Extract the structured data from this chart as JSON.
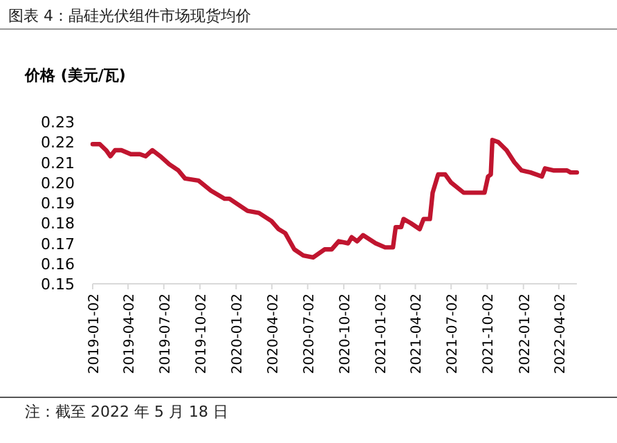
{
  "chart_data": {
    "type": "line",
    "title": "图表 4：晶硅光伏组件市场现货均价",
    "ylabel": "价格 (美元/瓦)",
    "annotations": [
      "注：截至 2022 年 5 月 18 日"
    ],
    "xlim": [
      "2019-01-02",
      "2022-05-18"
    ],
    "xticks": [
      "2019-01-02",
      "2019-04-02",
      "2019-07-02",
      "2019-10-02",
      "2020-01-02",
      "2020-04-02",
      "2020-07-02",
      "2020-10-02",
      "2021-01-02",
      "2021-04-02",
      "2021-07-02",
      "2021-10-02",
      "2022-01-02",
      "2022-04-02"
    ],
    "ylim": [
      0.15,
      0.23
    ],
    "yticks": [
      0.15,
      0.16,
      0.17,
      0.18,
      0.19,
      {
        "value": 0.2,
        "label": "0.20"
      },
      0.21,
      0.22,
      0.23
    ],
    "grid": false,
    "marker": "none",
    "line_style": "solid",
    "series": [
      {
        "color": "#c0152f",
        "x": [
          "2019-01-02",
          "2019-01-20",
          "2019-02-05",
          "2019-02-16",
          "2019-02-28",
          "2019-03-16",
          "2019-04-09",
          "2019-05-02",
          "2019-05-17",
          "2019-06-03",
          "2019-06-23",
          "2019-07-16",
          "2019-08-08",
          "2019-08-25",
          "2019-09-28",
          "2019-10-30",
          "2019-12-04",
          "2019-12-16",
          "2020-01-08",
          "2020-01-31",
          "2020-02-29",
          "2020-04-01",
          "2020-04-19",
          "2020-05-06",
          "2020-05-29",
          "2020-06-21",
          "2020-07-16",
          "2020-08-14",
          "2020-09-01",
          "2020-09-19",
          "2020-10-13",
          "2020-10-22",
          "2020-11-05",
          "2020-11-20",
          "2020-12-22",
          "2021-01-15",
          "2021-02-04",
          "2021-02-11",
          "2021-02-25",
          "2021-03-03",
          "2021-03-21",
          "2021-04-13",
          "2021-04-23",
          "2021-05-09",
          "2021-05-16",
          "2021-05-30",
          "2021-06-17",
          "2021-07-02",
          "2021-08-03",
          "2021-09-25",
          "2021-10-04",
          "2021-10-11",
          "2021-10-15",
          "2021-10-30",
          "2021-11-20",
          "2021-12-10",
          "2021-12-28",
          "2022-01-20",
          "2022-02-18",
          "2022-02-26",
          "2022-03-19",
          "2022-04-23",
          "2022-05-02",
          "2022-05-18"
        ],
        "values": [
          0.219,
          0.219,
          0.216,
          0.213,
          0.216,
          0.216,
          0.214,
          0.214,
          0.213,
          0.216,
          0.213,
          0.209,
          0.206,
          0.202,
          0.201,
          0.196,
          0.192,
          0.192,
          0.189,
          0.186,
          0.185,
          0.181,
          0.177,
          0.175,
          0.167,
          0.164,
          0.163,
          0.167,
          0.167,
          0.171,
          0.17,
          0.173,
          0.171,
          0.174,
          0.17,
          0.168,
          0.168,
          0.178,
          0.178,
          0.182,
          0.18,
          0.177,
          0.182,
          0.182,
          0.195,
          0.204,
          0.204,
          0.2,
          0.195,
          0.195,
          0.203,
          0.204,
          0.221,
          0.22,
          0.216,
          0.21,
          0.206,
          0.205,
          0.203,
          0.207,
          0.206,
          0.206,
          0.205,
          0.205
        ]
      }
    ]
  }
}
